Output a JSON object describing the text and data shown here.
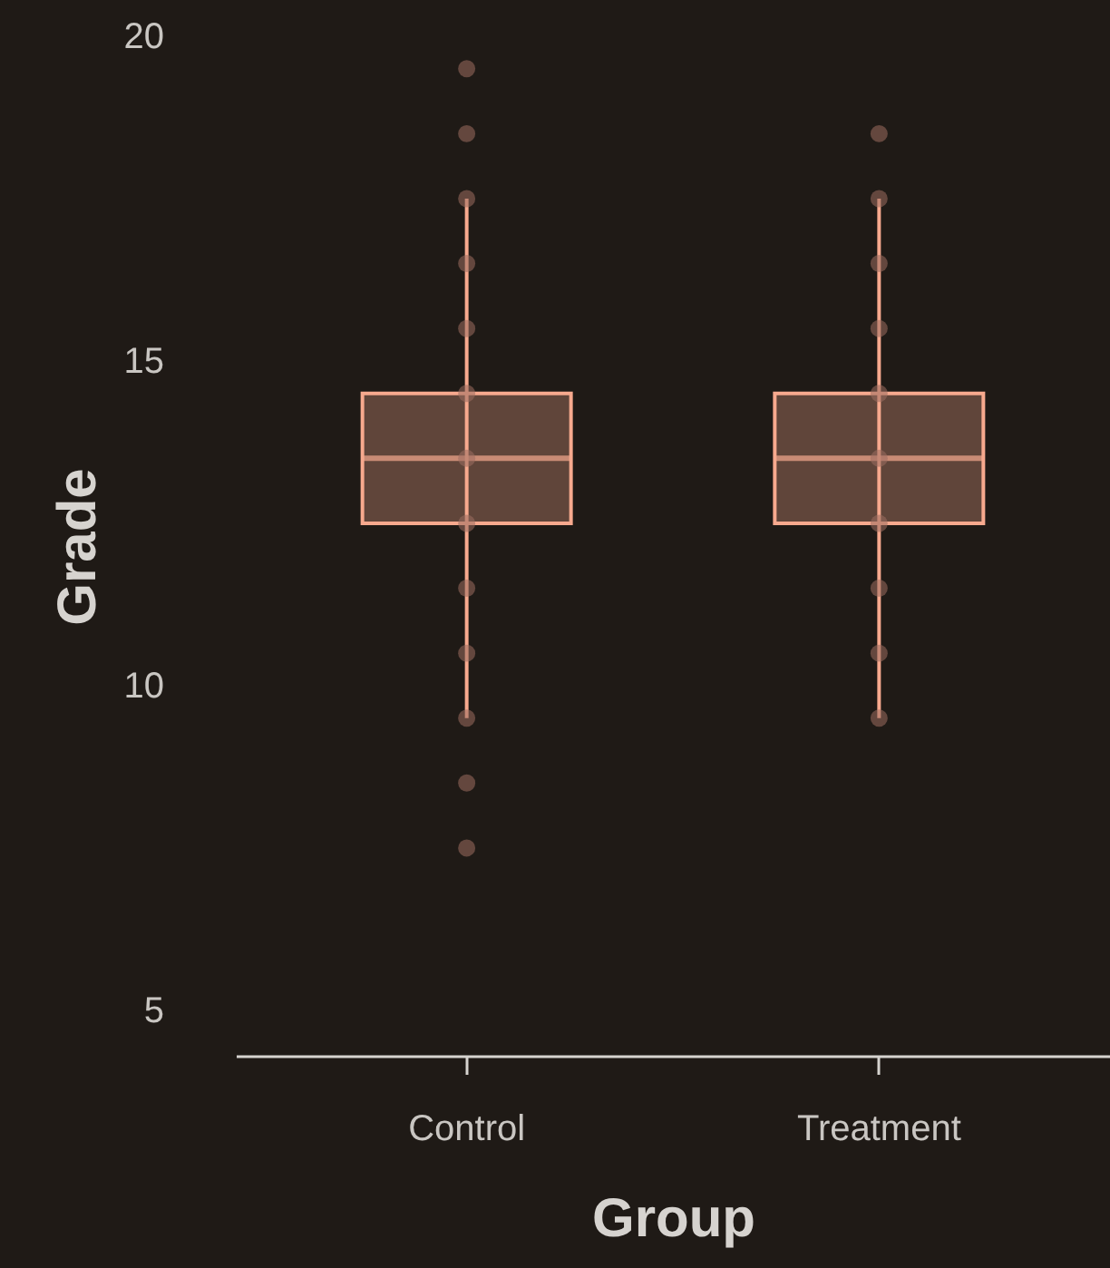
{
  "chart_data": {
    "type": "box",
    "xlabel": "Group",
    "ylabel": "Grade",
    "categories": [
      "Control",
      "Treatment"
    ],
    "ylim": [
      4.3,
      20
    ],
    "yticks": [
      5,
      10,
      15,
      20
    ],
    "grid": false,
    "legend": false,
    "series": [
      {
        "color": "#f7a98e",
        "boxes": [
          {
            "low": 9.5,
            "q1": 12.5,
            "median": 13.5,
            "q3": 14.5,
            "high": 17.5
          },
          {
            "low": 9.5,
            "q1": 12.5,
            "median": 13.5,
            "q3": 14.5,
            "high": 17.5
          }
        ]
      },
      {
        "type": "scatter",
        "color": "#9c6e60",
        "x": [
          "Control",
          "Control",
          "Control",
          "Control",
          "Control",
          "Control",
          "Control",
          "Control",
          "Control",
          "Control",
          "Control",
          "Control",
          "Control",
          "Treatment",
          "Treatment",
          "Treatment",
          "Treatment",
          "Treatment",
          "Treatment",
          "Treatment",
          "Treatment",
          "Treatment",
          "Treatment"
        ],
        "values": [
          7.5,
          8.5,
          9.5,
          10.5,
          11.5,
          12.5,
          13.5,
          14.5,
          15.5,
          16.5,
          17.5,
          18.5,
          19.5,
          9.5,
          10.5,
          11.5,
          12.5,
          13.5,
          14.5,
          15.5,
          16.5,
          17.5,
          18.5
        ]
      }
    ]
  }
}
